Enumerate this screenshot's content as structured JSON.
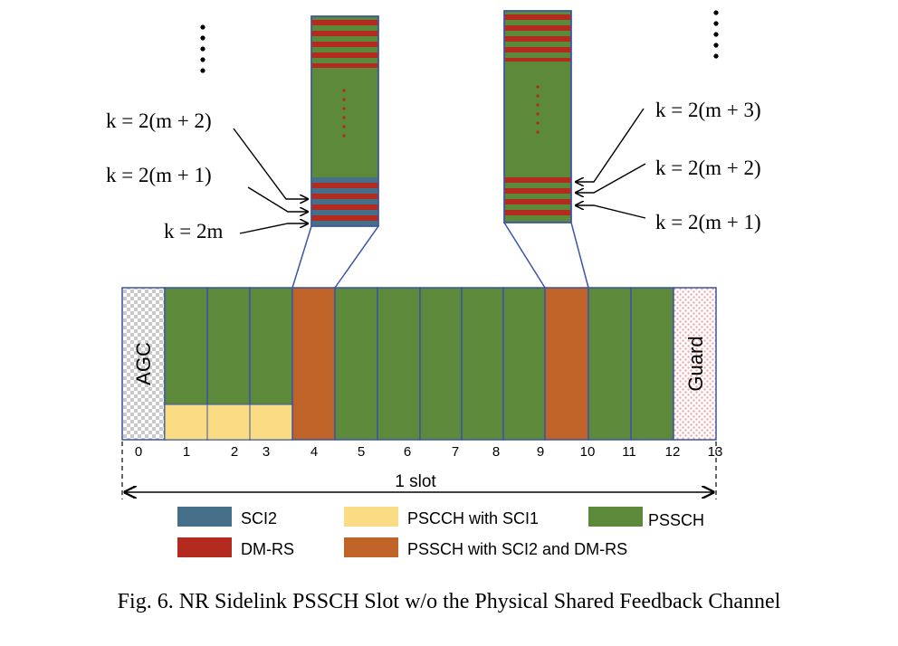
{
  "figure": {
    "caption": "Fig. 6.   NR Sidelink PSSCH Slot w/o the Physical Shared Feedback Channel"
  },
  "colors": {
    "sci2": "#46708a",
    "dmrs": "#b32a1e",
    "pscch": "#f9dc83",
    "pssch": "#5c8a3a",
    "pssch_sci2_dmrs": "#bf6329",
    "border": "#3b55a6",
    "guard_dot": "#f2a7a7"
  },
  "slot": {
    "agc_label": "AGC",
    "guard_label": "Guard",
    "tick_labels": [
      "0",
      "1",
      "2",
      "3",
      "4",
      "5",
      "6",
      "7",
      "8",
      "9",
      "10",
      "11",
      "12",
      "13"
    ],
    "slot_label": "1 slot"
  },
  "zoom_left": {
    "equations": [
      "k = 2(m + 2)",
      "k = 2(m + 1)",
      "k = 2m"
    ],
    "ellipsis": "⋮"
  },
  "zoom_right": {
    "equations": [
      "k = 2(m + 3)",
      "k = 2(m + 2)",
      "k = 2(m + 1)"
    ],
    "ellipsis": "⋮"
  },
  "legend": [
    {
      "label": "SCI2",
      "color_key": "sci2"
    },
    {
      "label": "PSCCH with SCI1",
      "color_key": "pscch"
    },
    {
      "label": "PSSCH",
      "color_key": "pssch"
    },
    {
      "label": "DM-RS",
      "color_key": "dmrs"
    },
    {
      "label": "PSSCH with SCI2 and DM-RS",
      "color_key": "pssch_sci2_dmrs"
    }
  ]
}
